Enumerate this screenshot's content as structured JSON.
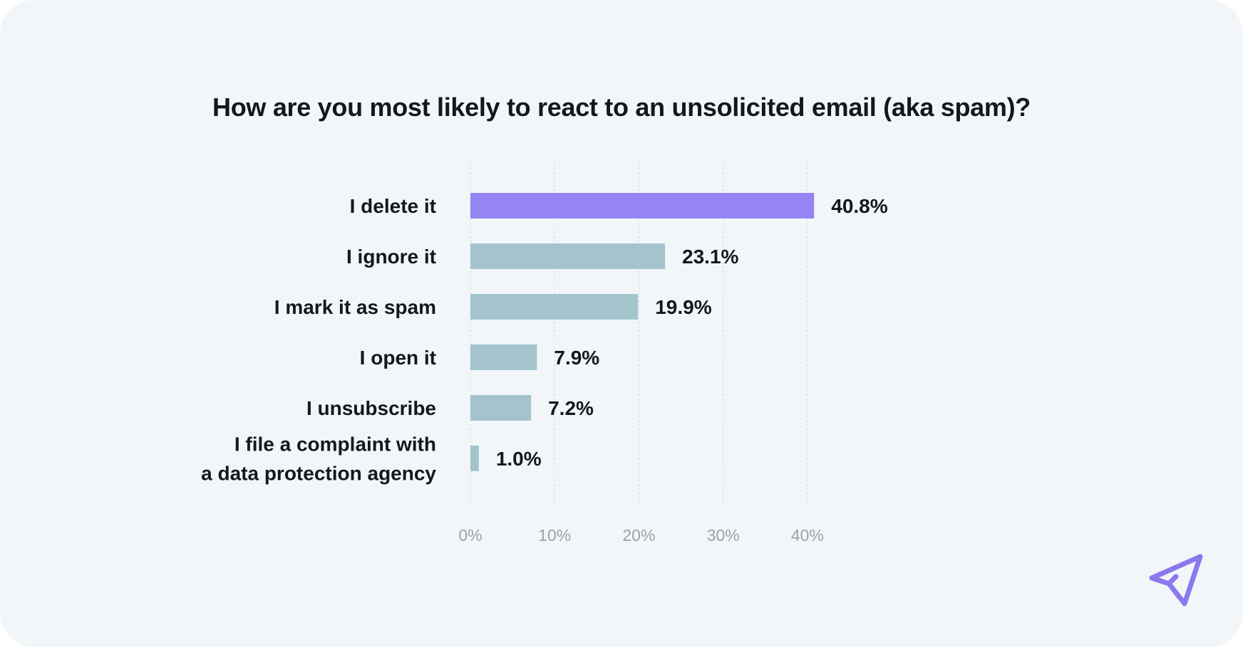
{
  "chart_data": {
    "type": "bar",
    "orientation": "horizontal",
    "title": "How are you most likely to react to an unsolicited email (aka spam)?",
    "categories": [
      [
        "I delete it"
      ],
      [
        "I ignore it"
      ],
      [
        "I mark it as spam"
      ],
      [
        "I open it"
      ],
      [
        "I unsubscribe"
      ],
      [
        "I file a complaint with",
        "a data protection agency"
      ]
    ],
    "values": [
      40.8,
      23.1,
      19.9,
      7.9,
      7.2,
      1.0
    ],
    "value_labels": [
      "40.8%",
      "23.1%",
      "19.9%",
      "7.9%",
      "7.2%",
      "1.0%"
    ],
    "highlight_index": 0,
    "xlim": [
      0,
      40
    ],
    "xticks": [
      0,
      10,
      20,
      30,
      40
    ],
    "xtick_labels": [
      "0%",
      "10%",
      "20%",
      "30%",
      "40%"
    ],
    "grid": true,
    "xlabel": "",
    "ylabel": ""
  },
  "colors": {
    "highlight_bar": "#9585f2",
    "default_bar": "#a4c4cd",
    "grid": "#d6dde2",
    "logo": "#8b78ee"
  },
  "logo": {
    "icon": "paper-plane-icon"
  }
}
